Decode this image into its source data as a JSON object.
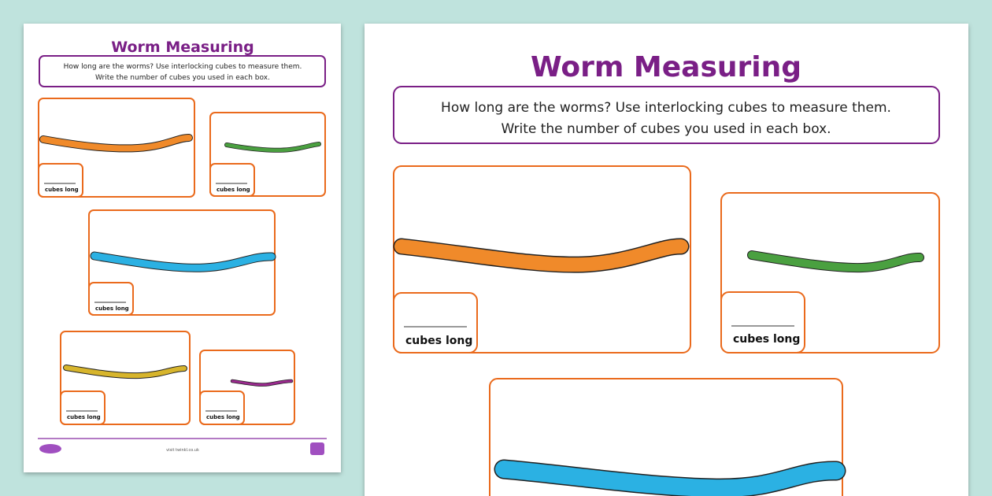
{
  "pages": [
    {
      "title": "Worm Measuring",
      "instructions": [
        "How long are the worms? Use interlocking cubes to measure them.",
        "Write the number of cubes you used in each box."
      ],
      "boxes": [
        {
          "label": "cubes long"
        },
        {
          "label": "cubes long"
        },
        {
          "label": "cubes long"
        },
        {
          "label": "cubes long"
        },
        {
          "label": "cubes long"
        }
      ],
      "footer": "visit twinkl.co.uk"
    },
    {
      "title": "Worm Measuring",
      "instructions": [
        "How long are the worms? Use interlocking cubes to measure them.",
        "Write the number of cubes you used in each box."
      ],
      "boxes": [
        {
          "label": "cubes long"
        },
        {
          "label": "cubes long"
        }
      ]
    }
  ]
}
